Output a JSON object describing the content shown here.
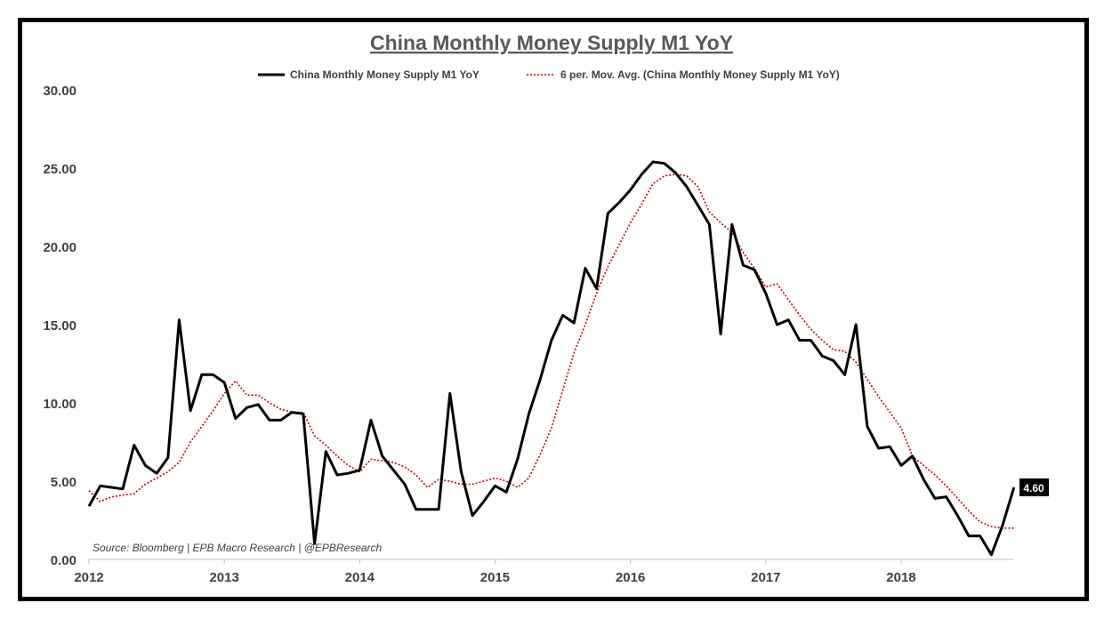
{
  "chart_data": {
    "type": "line",
    "title": "China Monthly Money Supply M1 YoY",
    "source": "Source: Bloomberg | EPB Macro Research | @EPBResearch",
    "ylim": [
      0,
      30
    ],
    "yticks": [
      "0.00",
      "5.00",
      "10.00",
      "15.00",
      "20.00",
      "25.00",
      "30.00"
    ],
    "xticks": [
      "2012",
      "2013",
      "2014",
      "2015",
      "2016",
      "2017",
      "2018"
    ],
    "x_start": "2012-01",
    "x_end": "2018-11",
    "grid": false,
    "legend_position": "top",
    "last_value_label": "4.60",
    "series": [
      {
        "name": "China Monthly Money Supply M1 YoY",
        "color": "#000000",
        "style": "solid",
        "values": [
          3.4,
          4.7,
          4.6,
          4.5,
          7.3,
          6.0,
          5.5,
          6.5,
          15.3,
          9.5,
          11.8,
          11.8,
          11.3,
          9.0,
          9.7,
          9.9,
          8.9,
          8.9,
          9.4,
          9.3,
          1.0,
          6.9,
          5.4,
          5.5,
          5.7,
          8.9,
          6.6,
          5.7,
          4.8,
          3.2,
          3.2,
          3.2,
          10.6,
          5.6,
          2.8,
          3.7,
          4.7,
          4.3,
          6.4,
          9.3,
          11.5,
          14.0,
          15.6,
          15.1,
          18.6,
          17.3,
          22.1,
          22.8,
          23.6,
          24.6,
          25.4,
          25.3,
          24.7,
          23.8,
          22.6,
          21.4,
          14.4,
          21.4,
          18.8,
          18.5,
          17.0,
          15.0,
          15.3,
          14.0,
          14.0,
          13.0,
          12.7,
          11.8,
          15.0,
          8.5,
          7.1,
          7.2,
          6.0,
          6.6,
          5.1,
          3.9,
          4.0,
          2.8,
          1.5,
          1.5,
          0.3,
          2.2,
          4.6
        ]
      },
      {
        "name": "6 per. Mov. Avg. (China Monthly Money Supply M1 YoY)",
        "color": "#c00000",
        "style": "dotted",
        "values": [
          4.4,
          3.7,
          4.0,
          4.1,
          4.2,
          4.8,
          5.2,
          5.6,
          6.2,
          7.5,
          8.5,
          9.5,
          10.6,
          11.4,
          10.5,
          10.5,
          10.0,
          9.6,
          9.4,
          9.4,
          7.9,
          7.3,
          6.6,
          6.0,
          5.6,
          6.4,
          6.3,
          6.2,
          5.9,
          5.4,
          4.6,
          5.1,
          5.0,
          4.8,
          4.8,
          5.0,
          5.2,
          5.0,
          4.6,
          5.2,
          6.7,
          8.4,
          10.8,
          13.2,
          15.0,
          17.0,
          18.7,
          20.1,
          21.5,
          22.7,
          24.0,
          24.5,
          24.6,
          24.5,
          23.8,
          22.2,
          21.5,
          20.9,
          19.6,
          18.6,
          17.4,
          17.6,
          16.6,
          15.6,
          14.7,
          14.0,
          13.4,
          13.3,
          12.6,
          11.5,
          10.4,
          9.4,
          8.4,
          6.6,
          6.0,
          5.4,
          4.7,
          3.9,
          3.1,
          2.4,
          2.1,
          2.0,
          2.0
        ]
      }
    ]
  }
}
